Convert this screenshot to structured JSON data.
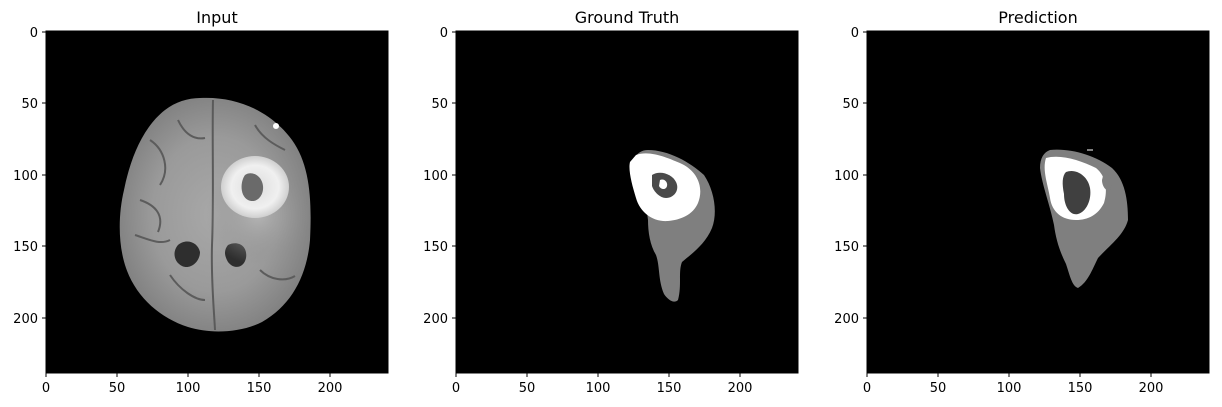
{
  "figure": {
    "panels": [
      {
        "id": "input",
        "title": "Input",
        "x_ticks": [
          "0",
          "50",
          "100",
          "150",
          "200"
        ],
        "y_ticks": [
          "0",
          "50",
          "100",
          "150",
          "200"
        ],
        "content": "mri-slice"
      },
      {
        "id": "ground-truth",
        "title": "Ground Truth",
        "x_ticks": [
          "0",
          "50",
          "100",
          "150",
          "200"
        ],
        "y_ticks": [
          "0",
          "50",
          "100",
          "150",
          "200"
        ],
        "content": "segmentation-mask"
      },
      {
        "id": "prediction",
        "title": "Prediction",
        "x_ticks": [
          "0",
          "50",
          "100",
          "150",
          "200"
        ],
        "y_ticks": [
          "0",
          "50",
          "100",
          "150",
          "200"
        ],
        "content": "segmentation-mask"
      }
    ],
    "colors": {
      "background": "#000000",
      "tissue_gray": "#7f7f7f",
      "tumor_core": "#ffffff",
      "necrosis": "#404040"
    },
    "image_size": [
      240,
      240
    ]
  }
}
